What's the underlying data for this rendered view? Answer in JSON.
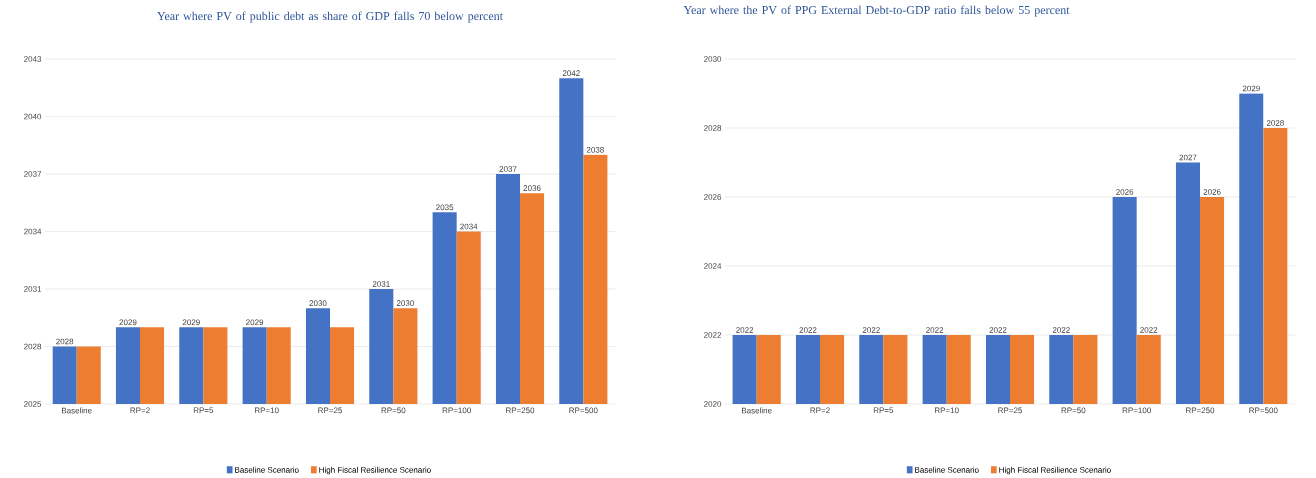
{
  "chart_data": [
    {
      "type": "bar",
      "title": "Year where PV of public debt as share of GDP falls 70 below percent",
      "categories": [
        "Baseline",
        "RP=2",
        "RP=5",
        "RP=10",
        "RP=25",
        "RP=50",
        "RP=100",
        "RP=250",
        "RP=500"
      ],
      "series": [
        {
          "name": "Baseline Scenario",
          "color": "#4472c4",
          "values": [
            2028,
            2029,
            2029,
            2029,
            2030,
            2031,
            2035,
            2037,
            2042
          ],
          "value_labels": [
            "2028",
            "2029",
            "2029",
            "2029",
            "2030",
            "2031",
            "2035",
            "2037",
            "2042"
          ]
        },
        {
          "name": "High Fiscal Resilience Scenario",
          "color": "#ed7d31",
          "values": [
            2028,
            2029,
            2029,
            2029,
            2029,
            2030,
            2034,
            2036,
            2038
          ],
          "value_labels": [
            null,
            null,
            null,
            null,
            null,
            "2030",
            "2034",
            "2036",
            "2038"
          ]
        }
      ],
      "ylim": [
        2025,
        2043
      ],
      "yticks": [
        2025,
        2028,
        2031,
        2034,
        2037,
        2040,
        2043
      ],
      "grid": "y",
      "legend": "bottom"
    },
    {
      "type": "bar",
      "title": "Year where the PV of PPG External Debt-to-GDP ratio falls below 55 percent",
      "categories": [
        "Baseline",
        "RP=2",
        "RP=5",
        "RP=10",
        "RP=25",
        "RP=50",
        "RP=100",
        "RP=250",
        "RP=500"
      ],
      "series": [
        {
          "name": "Baseline Scenario",
          "color": "#4472c4",
          "values": [
            2022,
            2022,
            2022,
            2022,
            2022,
            2022,
            2026,
            2027,
            2029
          ],
          "value_labels": [
            "2022",
            "2022",
            "2022",
            "2022",
            "2022",
            "2022",
            "2026",
            "2027",
            "2029"
          ]
        },
        {
          "name": "High Fiscal Resilience Scenario",
          "color": "#ed7d31",
          "values": [
            2022,
            2022,
            2022,
            2022,
            2022,
            2022,
            2022,
            2026,
            2028
          ],
          "value_labels": [
            null,
            null,
            null,
            null,
            null,
            null,
            "2022",
            "2026",
            "2028"
          ]
        }
      ],
      "ylim": [
        2020,
        2030
      ],
      "yticks": [
        2020,
        2022,
        2024,
        2026,
        2028,
        2030
      ],
      "grid": "y",
      "legend": "bottom"
    }
  ]
}
